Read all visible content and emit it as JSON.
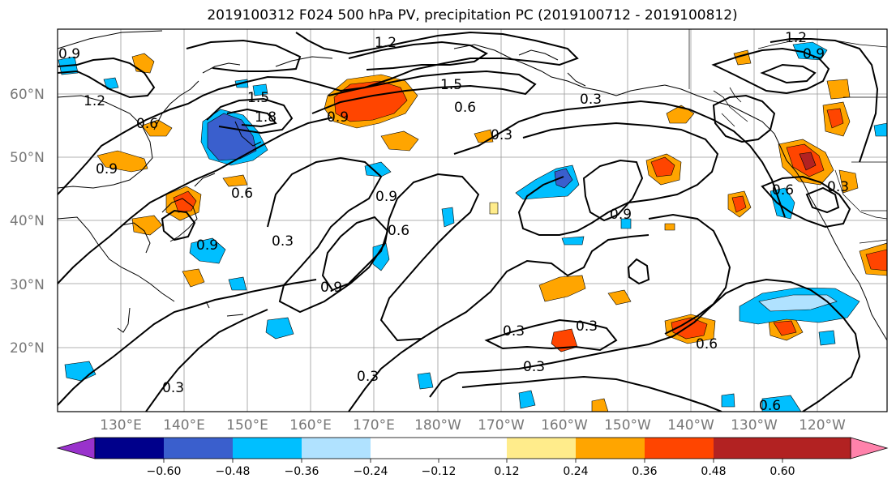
{
  "title": "2019100312 F024 500 hPa PV, precipitation PC (2019100712 - 2019100812)",
  "lat_labels": [
    "20°N",
    "30°N",
    "40°N",
    "50°N",
    "60°N"
  ],
  "lon_labels": [
    "130°E",
    "140°E",
    "150°E",
    "160°E",
    "170°E",
    "180°W",
    "170°W",
    "160°W",
    "150°W",
    "140°W",
    "130°W",
    "120°W"
  ],
  "colorbar": {
    "colors": [
      "#9932cc",
      "#00008b",
      "#3a5fcd",
      "#00bfff",
      "#b0e2ff",
      "#ffffff",
      "#ffec8b",
      "#ffa500",
      "#ff4500",
      "#b22222",
      "#ff82ab"
    ],
    "tick_labels": [
      "−0.60",
      "−0.48",
      "−0.36",
      "−0.24",
      "−0.12",
      "0.12",
      "0.24",
      "0.36",
      "0.48",
      "0.60"
    ]
  },
  "contour_labels": [
    {
      "text": "1.2"
    },
    {
      "text": "0.9"
    },
    {
      "text": "1.2"
    },
    {
      "text": "1.5"
    },
    {
      "text": "0.6"
    },
    {
      "text": "1.8"
    },
    {
      "text": "1.5"
    },
    {
      "text": "0.9"
    },
    {
      "text": "0.3"
    },
    {
      "text": "0.3"
    },
    {
      "text": "0.9"
    },
    {
      "text": "0.6"
    },
    {
      "text": "0.9"
    },
    {
      "text": "0.6"
    },
    {
      "text": "0.3"
    },
    {
      "text": "0.9"
    },
    {
      "text": "0.9"
    },
    {
      "text": "0.6"
    },
    {
      "text": "0.3"
    },
    {
      "text": "0.3"
    },
    {
      "text": "0.3"
    },
    {
      "text": "0.3"
    },
    {
      "text": "0.3"
    },
    {
      "text": "0.6"
    },
    {
      "text": "0.9"
    },
    {
      "text": "0.6"
    },
    {
      "text": "0.3"
    },
    {
      "text": "1.2"
    },
    {
      "text": "0.9"
    },
    {
      "text": "0.6"
    }
  ]
}
